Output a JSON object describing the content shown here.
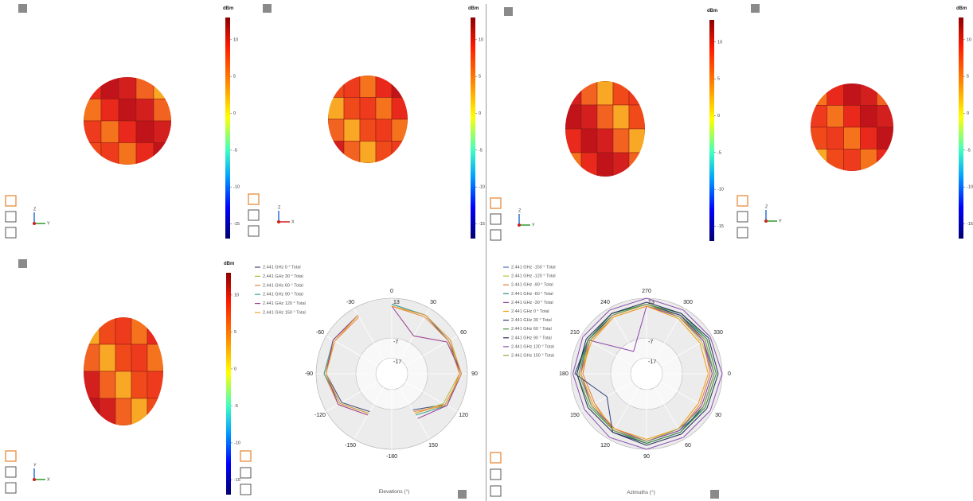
{
  "views": [
    {
      "colorbar_unit": "dBm",
      "clim": [
        -17,
        13
      ],
      "colorbar_ticks": [
        10,
        5,
        0,
        -5,
        -10,
        -15
      ],
      "axis_labels": [
        "Z",
        "Y"
      ]
    },
    {
      "colorbar_unit": "dBm",
      "clim": [
        -17,
        13
      ],
      "colorbar_ticks": [
        10,
        5,
        0,
        -5,
        -10,
        -15
      ],
      "axis_labels": [
        "Z",
        "X"
      ]
    },
    {
      "colorbar_unit": "dBm",
      "clim": [
        -17,
        13
      ],
      "colorbar_ticks": [
        10,
        5,
        0,
        -5,
        -10,
        -15
      ],
      "axis_labels": [
        "Z",
        "Y"
      ]
    },
    {
      "colorbar_unit": "dBm",
      "clim": [
        -17,
        13
      ],
      "colorbar_ticks": [
        10,
        5,
        0,
        -5,
        -10,
        -15
      ],
      "axis_labels": [
        "Z",
        "Y"
      ]
    },
    {
      "colorbar_unit": "dBm",
      "clim": [
        -17,
        13
      ],
      "colorbar_ticks": [
        10,
        5,
        0,
        -5,
        -10,
        -15
      ],
      "axis_labels": [
        "Y",
        "X"
      ]
    }
  ],
  "chart_data": [
    {
      "type": "polar",
      "x_label": "Elevations (°)",
      "theta_zero": "top",
      "theta_direction": "clockwise",
      "x": [
        0,
        30,
        60,
        90,
        120,
        150,
        -180,
        -150,
        -120,
        -90,
        -60,
        -30
      ],
      "xticks": [
        0,
        30,
        60,
        90,
        120,
        150,
        -180,
        -150,
        -120,
        -90,
        -60,
        -30
      ],
      "ylim": [
        -25,
        13
      ],
      "yticks": [
        -17,
        -7,
        13
      ],
      "series": [
        {
          "name": "2.441 GHz 0 ° Total",
          "color": "#3d4a7a",
          "values": [
            10,
            9,
            8,
            10,
            6,
            -4,
            null,
            -3,
            4,
            8,
            9,
            9
          ]
        },
        {
          "name": "2.441 GHz 30 ° Total",
          "color": "#b5b832",
          "values": [
            9,
            9,
            9,
            9,
            5,
            -2,
            null,
            -2,
            5,
            9,
            8,
            9
          ]
        },
        {
          "name": "2.441 GHz 60 ° Total",
          "color": "#e8823a",
          "values": [
            9,
            8,
            8,
            9,
            7,
            -3,
            null,
            -1,
            6,
            9,
            8,
            8
          ]
        },
        {
          "name": "2.441 GHz 90 ° Total",
          "color": "#3aa89a",
          "values": [
            10,
            9,
            9,
            10,
            7,
            -1,
            null,
            -2,
            5,
            9,
            9,
            9
          ]
        },
        {
          "name": "2.441 GHz 120 ° Total",
          "color": "#9b3f8f",
          "values": [
            9,
            -3,
            7,
            10,
            7,
            1,
            null,
            -1,
            6,
            8,
            9,
            9
          ]
        },
        {
          "name": "2.441 GHz 150 ° Total",
          "color": "#f0a030",
          "values": [
            9,
            9,
            9,
            10,
            6,
            -2,
            null,
            -2,
            5,
            8,
            8,
            9
          ]
        }
      ]
    },
    {
      "type": "polar",
      "x_label": "Azimuths (°)",
      "theta_zero": "right",
      "theta_direction": "clockwise",
      "x": [
        0,
        30,
        60,
        90,
        120,
        150,
        180,
        210,
        240,
        270,
        300,
        330
      ],
      "xticks": [
        0,
        30,
        60,
        90,
        120,
        150,
        180,
        210,
        240,
        270,
        300,
        330
      ],
      "ylim": [
        -25,
        13
      ],
      "yticks": [
        -17,
        -7,
        13
      ],
      "series": [
        {
          "name": "2.441 GHz -150 ° Total",
          "color": "#4a6fb5",
          "values": [
            9,
            8,
            9,
            10,
            8,
            7,
            9,
            8,
            9,
            10,
            9,
            8
          ]
        },
        {
          "name": "2.441 GHz -120 ° Total",
          "color": "#b8c23a",
          "values": [
            8,
            7,
            8,
            9,
            7,
            6,
            8,
            8,
            9,
            10,
            8,
            7
          ]
        },
        {
          "name": "2.441 GHz -90 ° Total",
          "color": "#e07b39",
          "values": [
            7,
            6,
            8,
            9,
            8,
            5,
            7,
            8,
            8,
            9,
            9,
            8
          ]
        },
        {
          "name": "2.441 GHz -60 ° Total",
          "color": "#2e8b8b",
          "values": [
            10,
            9,
            8,
            9,
            8,
            7,
            9,
            9,
            10,
            10,
            9,
            10
          ]
        },
        {
          "name": "2.441 GHz -30 ° Total",
          "color": "#8e44ad",
          "values": [
            8,
            7,
            8,
            9,
            7,
            7,
            8,
            9,
            -12,
            9,
            8,
            8
          ]
        },
        {
          "name": "2.441 GHz 0 ° Total",
          "color": "#f39c12",
          "values": [
            6,
            5,
            7,
            8,
            7,
            6,
            8,
            7,
            8,
            9,
            7,
            6
          ]
        },
        {
          "name": "2.441 GHz 30 ° Total",
          "color": "#2c3e7a",
          "values": [
            9,
            8,
            9,
            10,
            9,
            -2,
            11,
            9,
            9,
            10,
            9,
            9
          ]
        },
        {
          "name": "2.441 GHz 60 ° Total",
          "color": "#3a9a3a",
          "values": [
            10,
            9,
            9,
            10,
            8,
            8,
            10,
            9,
            10,
            10,
            10,
            10
          ]
        },
        {
          "name": "2.441 GHz 90 ° Total",
          "color": "#2a2a5a",
          "values": [
            11,
            10,
            10,
            11,
            9,
            9,
            10,
            10,
            10,
            11,
            10,
            11
          ]
        },
        {
          "name": "2.441 GHz 120 ° Total",
          "color": "#8a4fb0",
          "values": [
            13,
            12,
            12,
            13,
            12,
            11,
            12,
            12,
            12,
            13,
            12,
            12
          ]
        },
        {
          "name": "2.441 GHz 150 ° Total",
          "color": "#9aa04a",
          "values": [
            9,
            8,
            7,
            9,
            8,
            7,
            9,
            8,
            9,
            10,
            8,
            9
          ]
        }
      ]
    }
  ]
}
